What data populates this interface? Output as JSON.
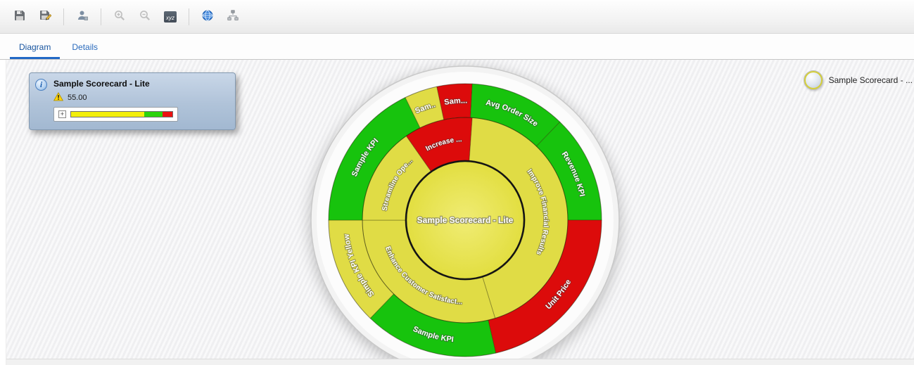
{
  "toolbar": {
    "xyz_label": "xyz",
    "icons": [
      "save-icon",
      "save-as-icon",
      "user-properties-icon",
      "zoom-in-icon",
      "zoom-out-icon",
      "xyz-icon",
      "globe-icon",
      "hierarchy-icon"
    ]
  },
  "tabs": [
    {
      "label": "Diagram",
      "active": true
    },
    {
      "label": "Details",
      "active": false
    }
  ],
  "tooltip_card": {
    "title": "Sample Scorecard - Lite",
    "status_value": "55.00",
    "expander": "+",
    "gauge_segments": [
      {
        "color": "#f2ef0b",
        "pct": 72
      },
      {
        "color": "#2bd30c",
        "pct": 18
      },
      {
        "color": "#ec1111",
        "pct": 10
      }
    ]
  },
  "legend": {
    "label": "Sample Scorecard - ..."
  },
  "chart_data": {
    "type": "pie",
    "variant": "scorecard-sunburst-wheel",
    "title": "Sample Scorecard - Lite",
    "palette": {
      "green": "#17c30d",
      "yellow": "#e0dc45",
      "red": "#dc0b0b"
    },
    "center": {
      "label": "Sample Scorecard - Lite",
      "status": "yellow"
    },
    "angle_convention": "degrees clockwise from 12 o'clock",
    "rings": [
      {
        "name": "objectives",
        "inner_radius": 85,
        "outer_radius": 146,
        "segments": [
          {
            "label": "Increase ...",
            "status": "red",
            "start_deg": 325,
            "end_deg": 364
          },
          {
            "label": "Improve Financial Results",
            "status": "yellow",
            "start_deg": 4,
            "end_deg": 163
          },
          {
            "label": "Enhance Customer Satisfact...",
            "status": "yellow",
            "start_deg": 163,
            "end_deg": 270
          },
          {
            "label": "Streamline Ope...",
            "status": "yellow",
            "start_deg": 270,
            "end_deg": 325
          }
        ]
      },
      {
        "name": "kpis",
        "inner_radius": 146,
        "outer_radius": 194,
        "segments": [
          {
            "label": "Sam...",
            "status": "red",
            "start_deg": 348,
            "end_deg": 363
          },
          {
            "label": "Avg Order Size",
            "status": "green",
            "start_deg": 3,
            "end_deg": 44
          },
          {
            "label": "Revenue KPI",
            "status": "green",
            "start_deg": 44,
            "end_deg": 90
          },
          {
            "label": "Unit Price",
            "status": "red",
            "start_deg": 90,
            "end_deg": 167
          },
          {
            "label": "Sample KPI",
            "status": "green",
            "start_deg": 167,
            "end_deg": 224
          },
          {
            "label": "Simple KPI Yellow",
            "status": "yellow",
            "start_deg": 224,
            "end_deg": 270
          },
          {
            "label": "Sample KPI",
            "status": "green",
            "start_deg": 270,
            "end_deg": 334
          },
          {
            "label": "Sam...",
            "status": "yellow",
            "start_deg": 334,
            "end_deg": 348
          }
        ]
      }
    ]
  }
}
